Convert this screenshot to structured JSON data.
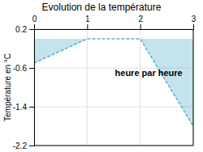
{
  "chart_data": {
    "type": "line",
    "title": "Evolution de la température",
    "xlabel": "heure par heure",
    "ylabel": "Température en °C",
    "x": [
      0,
      1,
      2,
      3
    ],
    "values": [
      -0.5,
      0.0,
      0.0,
      -1.8
    ],
    "color": "#5ab0c8",
    "line_style": "dashed",
    "xlim": [
      0,
      3
    ],
    "ylim": [
      -2.2,
      0.2
    ],
    "xticks": [
      0,
      1,
      2,
      3
    ],
    "yticks": [
      0.2,
      -0.6,
      -1.4,
      -2.2
    ],
    "grid": true
  }
}
